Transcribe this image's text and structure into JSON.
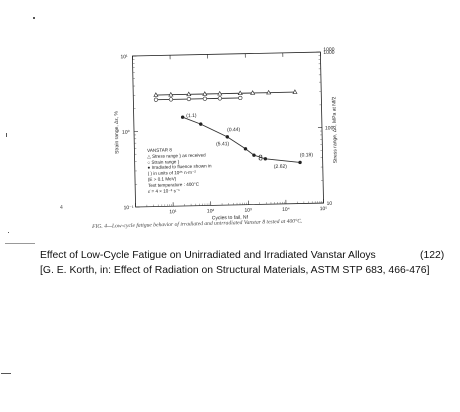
{
  "chart_data": {
    "type": "scatter",
    "title": "",
    "xlabel": "Cycles to fail, Nf",
    "ylabel_left": "Strain range, Δε, %",
    "ylabel_right": "Stress range, Δσ, MPa at Nf/2",
    "x_scale": "log",
    "y_scale": "log",
    "xlim": [
      1,
      100000
    ],
    "ylim_left": [
      0.1,
      10
    ],
    "ylim_right": [
      10,
      1000
    ],
    "x_ticks": [
      "10¹",
      "10²",
      "10³",
      "10⁴",
      "10⁵"
    ],
    "y_ticks_left": [
      "10⁻¹",
      "10⁰",
      "10¹"
    ],
    "y_ticks_right": [
      "10",
      "100",
      "1000"
    ],
    "top_right_tick_label": "1000",
    "series": [
      {
        "name": "Stress range as received",
        "marker": "triangle",
        "axis": "right",
        "x": [
          4,
          10,
          30,
          80,
          200,
          700,
          1500,
          4000,
          20000
        ],
        "y": [
          300,
          300,
          300,
          300,
          300,
          300,
          300,
          300,
          300
        ]
      },
      {
        "name": "Strain range as received",
        "marker": "circle",
        "axis": "right",
        "x": [
          4,
          10,
          30,
          80,
          200,
          700
        ],
        "y": [
          260,
          260,
          260,
          260,
          260,
          260
        ]
      },
      {
        "name": "Irradiated to fluence shown",
        "marker": "filled-circle",
        "axis": "left",
        "x": [
          20,
          60,
          300,
          900,
          1500,
          3000,
          25000
        ],
        "y": [
          1.5,
          1.2,
          0.8,
          0.55,
          0.45,
          0.4,
          0.35
        ]
      }
    ],
    "point_labels": [
      {
        "text": "(1.1)",
        "x": 25,
        "y": 1.5
      },
      {
        "text": "(0.44)",
        "x": 300,
        "y": 0.95
      },
      {
        "text": "(5.41)",
        "x": 150,
        "y": 0.62
      },
      {
        "text": "(2.62)",
        "x": 5000,
        "y": 0.3
      },
      {
        "text": "(0.18)",
        "x": 25000,
        "y": 0.42
      }
    ]
  },
  "legend": {
    "title": "VANSTAR 8",
    "lines": [
      "△ Stress range }  as received",
      "○ Strain range }",
      "● Irradiated to fluence shown in",
      "( ) in units of 10²⁵ n·m⁻²",
      "    (E > 0.1 MeV)",
      "Test temperature : 400°C",
      "ε̇ = 4 × 10⁻³ s⁻¹"
    ]
  },
  "figure_caption": "FIG. 4—Low-cycle fatigue behavior of irradiated and unirradiated Vanstar 8 tested at 400°C.",
  "figure_number": "4",
  "reference": {
    "title": "Effect of Low-Cycle Fatigue on Unirradiated and Irradiated Vanstar Alloys",
    "number": "(122)",
    "citation": "[G. E. Korth, in: Effect of Radiation on Structural Materials, ASTM STP 683, 466-476]"
  },
  "colors": {
    "ink": "#222222",
    "paper": "#ffffff"
  }
}
